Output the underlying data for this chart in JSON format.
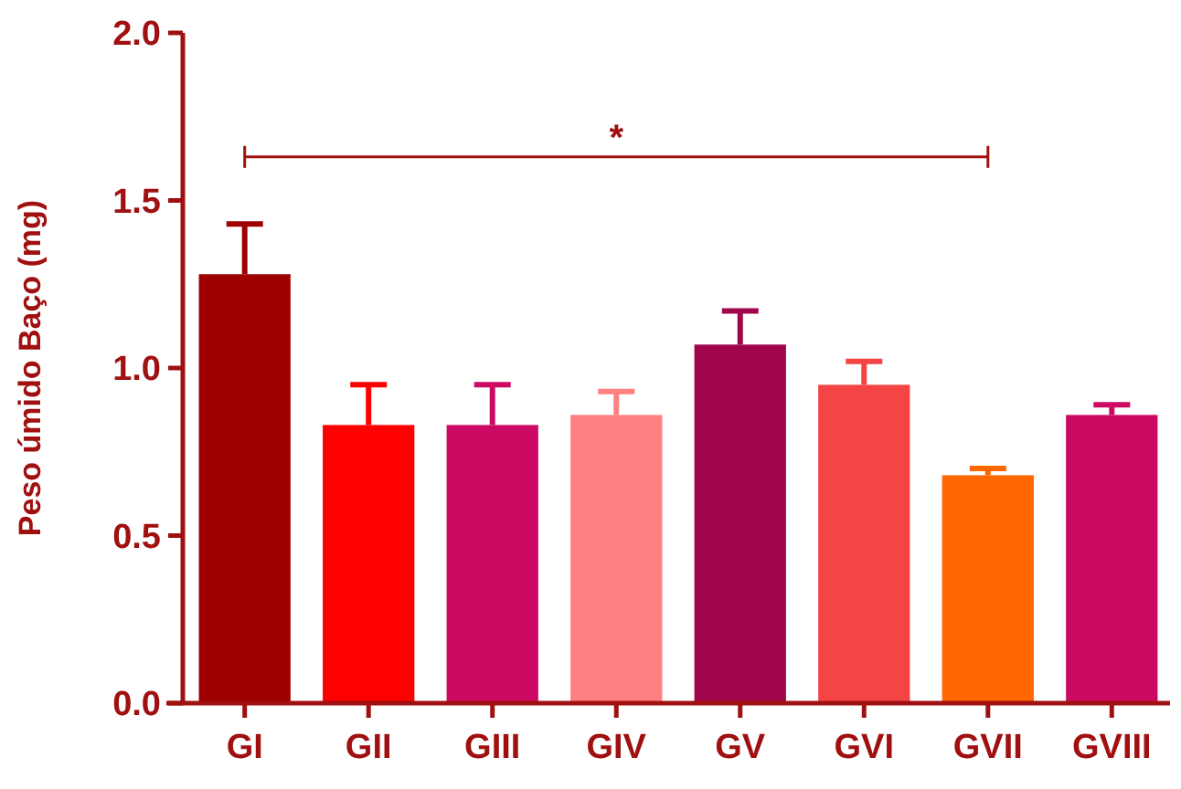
{
  "chart_data": {
    "type": "bar",
    "ylabel": "Peso úmido Baço (mg)",
    "categories": [
      "GI",
      "GII",
      "GIII",
      "GIV",
      "GV",
      "GVI",
      "GVII",
      "GVIII"
    ],
    "values": [
      1.28,
      0.83,
      0.83,
      0.86,
      1.07,
      0.95,
      0.68,
      0.86
    ],
    "errors": [
      [
        1.28,
        1.43
      ],
      [
        0.83,
        0.95
      ],
      [
        0.83,
        0.95
      ],
      [
        0.86,
        0.93
      ],
      [
        1.07,
        1.17
      ],
      [
        0.95,
        1.02
      ],
      [
        0.68,
        0.7
      ],
      [
        0.86,
        0.89
      ]
    ],
    "colors": [
      "#9e0000",
      "#ff0000",
      "#cc0a64",
      "#ff8080",
      "#a0064b",
      "#f44444",
      "#ff6600",
      "#cc0a64"
    ],
    "ylim": [
      0,
      2.0
    ],
    "yticks": [
      {
        "value": 0,
        "label": "0.0"
      },
      {
        "value": 0.5,
        "label": "0.5"
      },
      {
        "value": 1,
        "label": "1.0"
      },
      {
        "value": 1.5,
        "label": "1.5"
      },
      {
        "value": 2,
        "label": "2.0"
      }
    ],
    "annotations": [
      "*"
    ],
    "grid": false
  }
}
